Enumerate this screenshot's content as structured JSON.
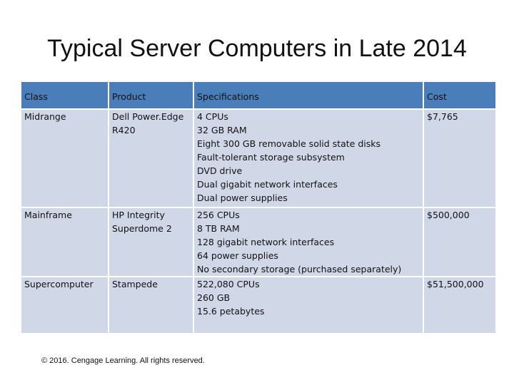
{
  "title": "Typical Server Computers in Late 2014",
  "table": {
    "headers": [
      "Class",
      "Product",
      "Specifications",
      "Cost"
    ],
    "rows": [
      {
        "class": "Midrange",
        "product": [
          "Dell Power.Edge",
          "R420"
        ],
        "specs": [
          "4 CPUs",
          "32 GB RAM",
          "Eight 300 GB removable solid state disks",
          "Fault-tolerant storage subsystem",
          "DVD drive",
          "Dual gigabit network interfaces",
          "Dual power supplies"
        ],
        "cost": "$7,765"
      },
      {
        "class": "Mainframe",
        "product": [
          "HP Integrity",
          "Superdome 2"
        ],
        "specs": [
          "256 CPUs",
          "8 TB RAM",
          "128 gigabit network interfaces",
          "64 power supplies",
          "No secondary storage (purchased separately)"
        ],
        "cost": "$500,000"
      },
      {
        "class": "Supercomputer",
        "product": [
          "Stampede"
        ],
        "specs": [
          "522,080 CPUs",
          "260 GB",
          "15.6 petabytes"
        ],
        "cost": "$51,500,000"
      }
    ]
  },
  "footer": "© 2016. Cengage Learning. All rights reserved."
}
